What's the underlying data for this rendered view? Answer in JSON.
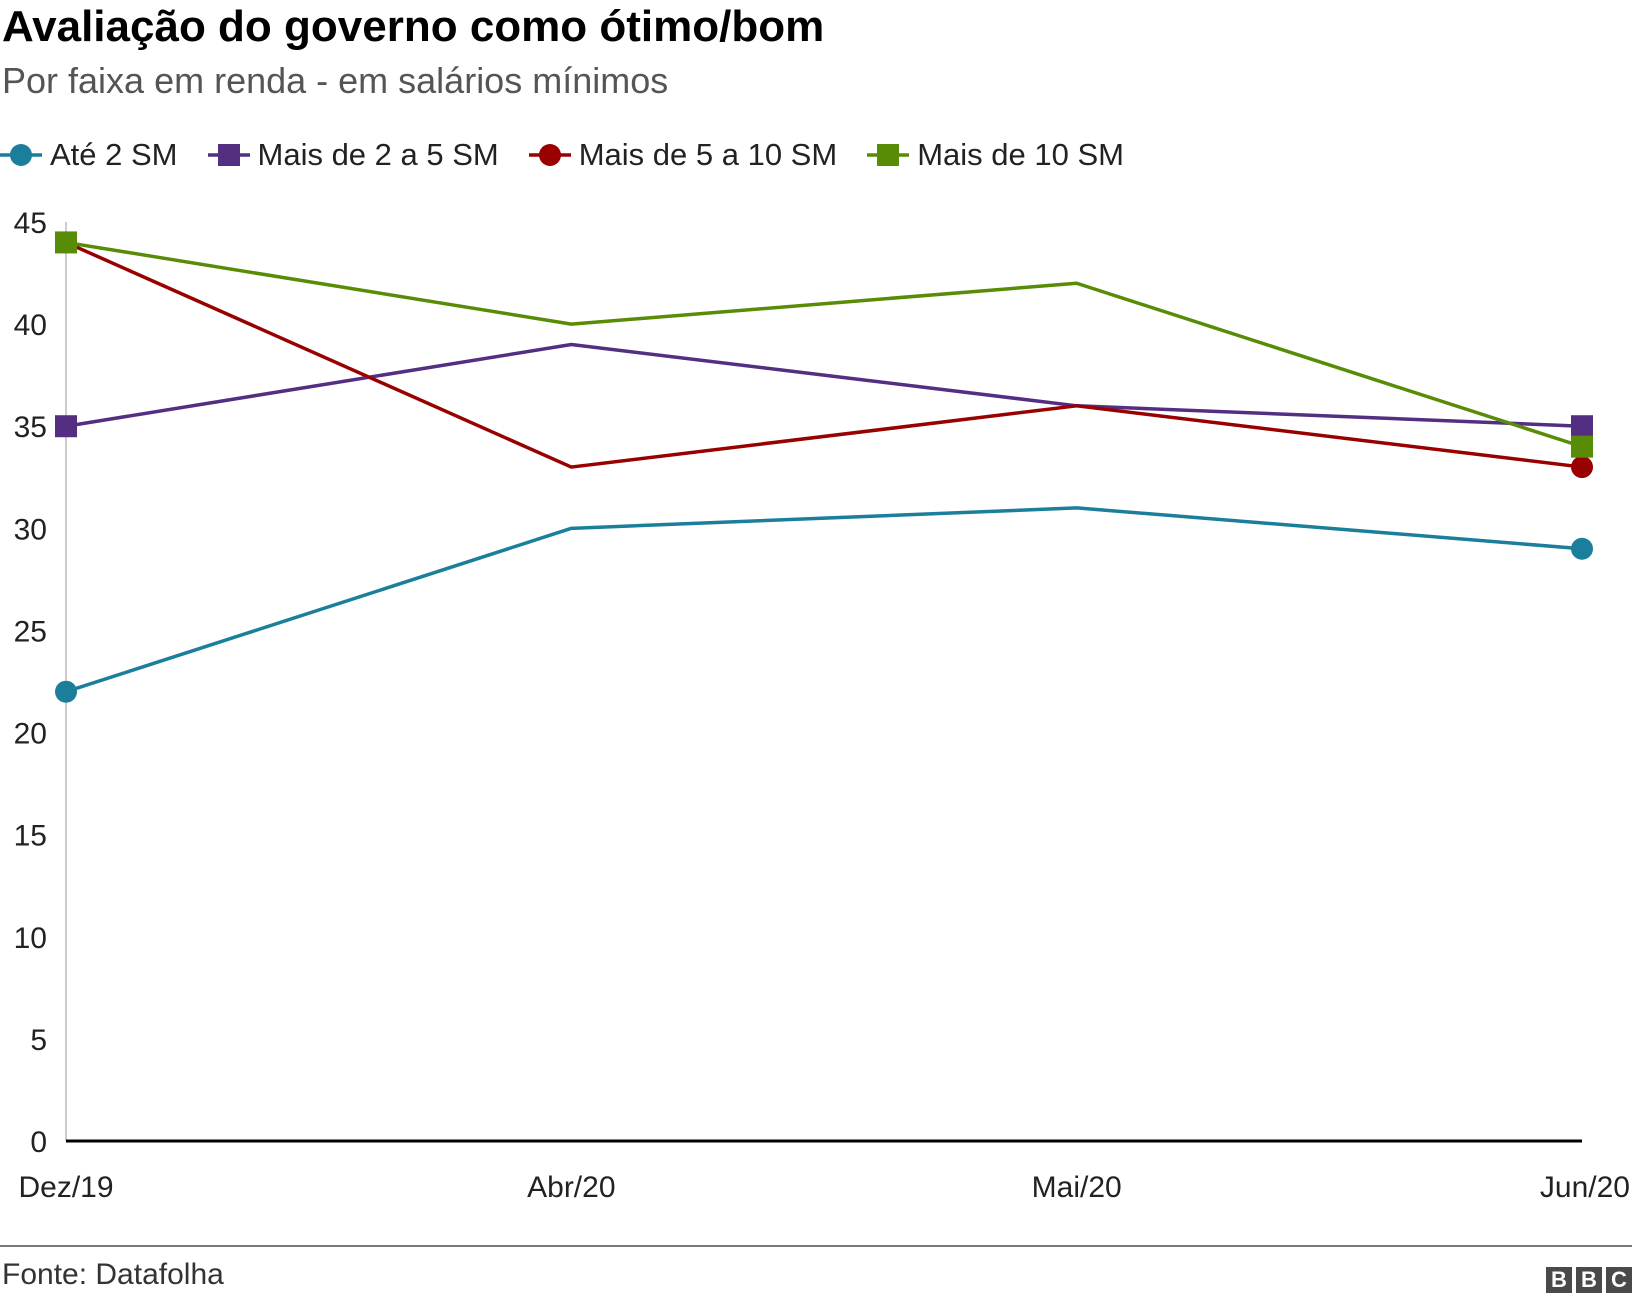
{
  "header": {
    "title": "Avaliação do governo como ótimo/bom",
    "subtitle": "Por faixa em renda - em salários mínimos"
  },
  "footer": {
    "source": "Fonte: Datafolha",
    "logo_letters": [
      "B",
      "B",
      "C"
    ]
  },
  "chart_data": {
    "type": "line",
    "title": "Avaliação do governo como ótimo/bom",
    "subtitle": "Por faixa em renda - em salários mínimos",
    "categories": [
      "Dez/19",
      "Abr/20",
      "Mai/20",
      "Jun/20"
    ],
    "xlabel": "",
    "ylabel": "",
    "ylim": [
      0,
      45
    ],
    "yticks": [
      0,
      5,
      10,
      15,
      20,
      25,
      30,
      35,
      40,
      45
    ],
    "grid": false,
    "legend_position": "top-left",
    "series": [
      {
        "name": "Até 2 SM",
        "values": [
          22,
          30,
          31,
          29
        ],
        "color": "#1b7f9b",
        "marker": "circle"
      },
      {
        "name": "Mais de 2 a 5 SM",
        "values": [
          35,
          39,
          36,
          35
        ],
        "color": "#532e81",
        "marker": "square"
      },
      {
        "name": "Mais de 5 a 10 SM",
        "values": [
          44,
          33,
          36,
          33
        ],
        "color": "#990000",
        "marker": "circle"
      },
      {
        "name": "Mais de 10 SM",
        "values": [
          44,
          40,
          42,
          34
        ],
        "color": "#588c07",
        "marker": "square"
      }
    ]
  }
}
